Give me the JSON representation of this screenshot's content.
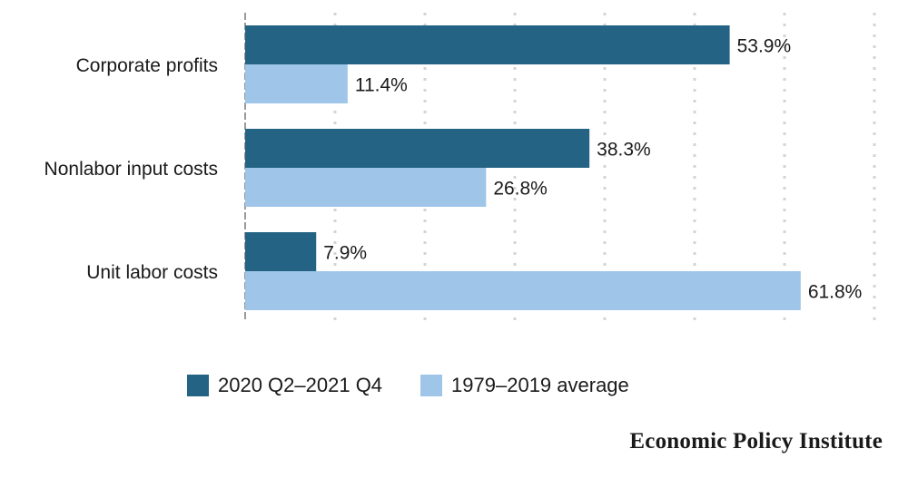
{
  "chart_data": {
    "type": "bar",
    "orientation": "horizontal",
    "categories": [
      "Corporate profits",
      "Nonlabor input costs",
      "Unit labor costs"
    ],
    "series": [
      {
        "name": "2020 Q2–2021 Q4",
        "color": "#246384",
        "values": [
          53.9,
          38.3,
          7.9
        ],
        "labels": [
          "53.9%",
          "38.3%",
          "7.9%"
        ]
      },
      {
        "name": "1979–2019 average",
        "color": "#9fc6e8",
        "values": [
          11.4,
          26.8,
          61.8
        ],
        "labels": [
          "11.4%",
          "26.8%",
          "61.8%"
        ]
      }
    ],
    "xlim": [
      0,
      70
    ],
    "grid": true,
    "legend_position": "bottom"
  },
  "brand": "Economic Policy Institute"
}
